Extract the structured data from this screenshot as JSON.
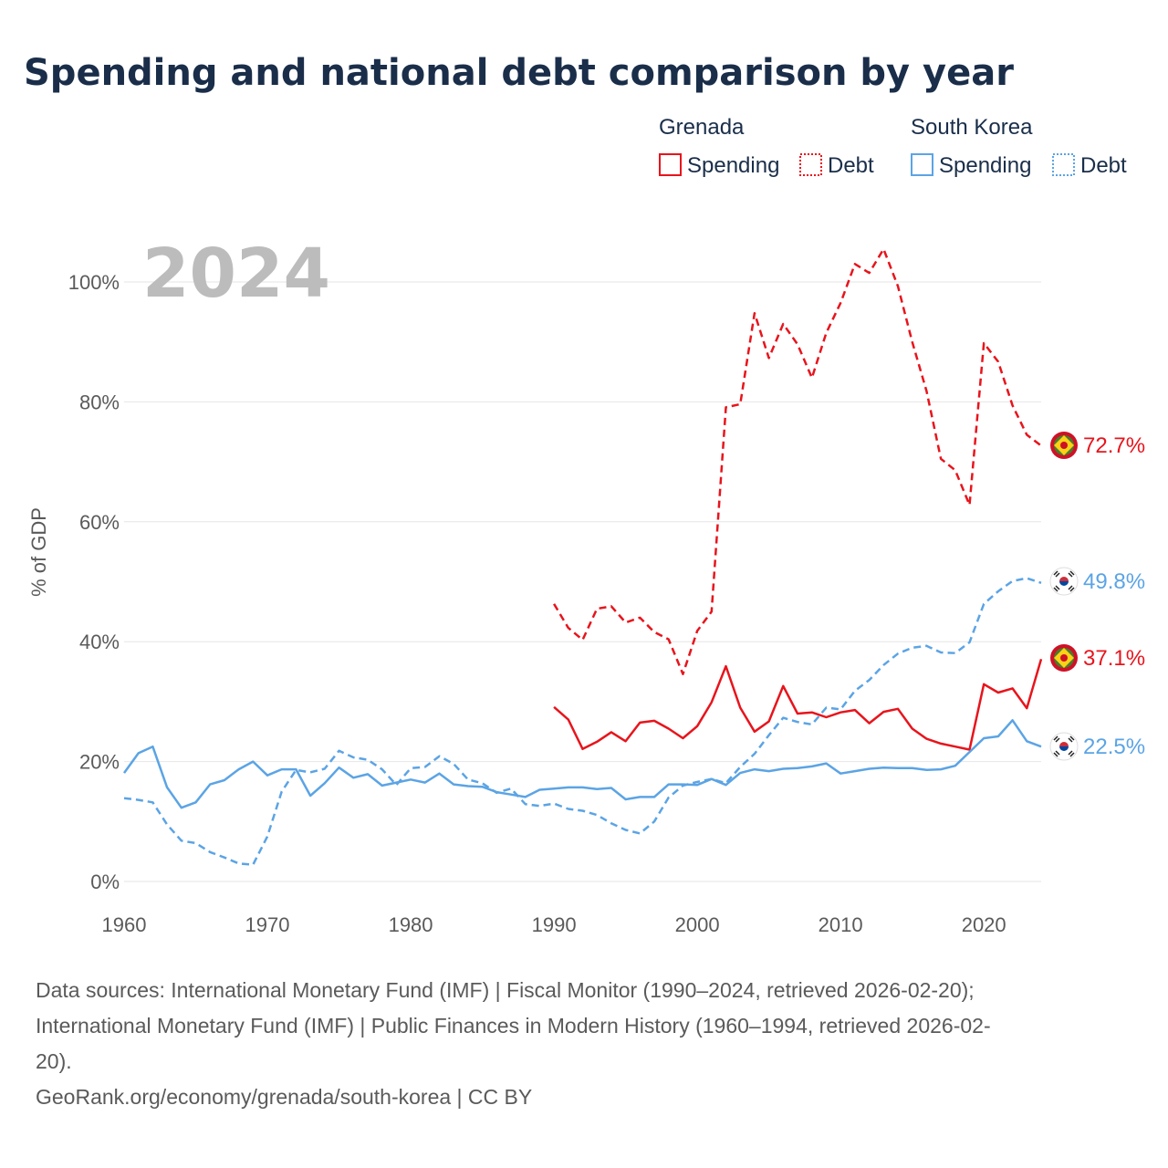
{
  "title": "Spending and national debt comparison by year",
  "year_watermark": "2024",
  "legend": {
    "groups": [
      {
        "country": "Grenada",
        "color": "#e8141c",
        "items": [
          {
            "label": "Spending",
            "style": "solid"
          },
          {
            "label": "Debt",
            "style": "dotted"
          }
        ]
      },
      {
        "country": "South Korea",
        "color": "#5ba4e5",
        "items": [
          {
            "label": "Spending",
            "style": "solid"
          },
          {
            "label": "Debt",
            "style": "dotted"
          }
        ]
      }
    ]
  },
  "end_labels": {
    "grenada_debt": "72.7%",
    "korea_debt": "49.8%",
    "grenada_spending": "37.1%",
    "korea_spending": "22.5%"
  },
  "footer": {
    "source_line1": "Data sources: International Monetary Fund (IMF) | Fiscal Monitor (1990–2024, retrieved 2026-02-20);",
    "source_line2": "International Monetary Fund (IMF) | Public Finances in Modern History (1960–1994, retrieved 2026-02-",
    "source_line3": "20).",
    "credit": "GeoRank.org/economy/grenada/south-korea | CC BY"
  },
  "chart_data": {
    "type": "line",
    "title": "Spending and national debt comparison by year",
    "xlabel": "",
    "ylabel": "% of GDP",
    "xlim": [
      1960,
      2024
    ],
    "ylim": [
      0,
      110
    ],
    "x_ticks": [
      1960,
      1970,
      1980,
      1990,
      2000,
      2010,
      2020
    ],
    "y_ticks": [
      0,
      20,
      40,
      60,
      80,
      100
    ],
    "y_tick_labels": [
      "0%",
      "20%",
      "40%",
      "60%",
      "80%",
      "100%"
    ],
    "grid": true,
    "legend_position": "top-right",
    "series": [
      {
        "name": "Grenada Debt",
        "country": "Grenada",
        "metric": "Debt",
        "color": "#e8141c",
        "dash": "dashed",
        "start_year": 1990,
        "values": [
          46.3,
          42.3,
          40.3,
          45.5,
          45.9,
          43.2,
          44.0,
          41.6,
          40.4,
          34.6,
          41.8,
          45.0,
          79.1,
          79.6,
          94.8,
          87.3,
          93.0,
          89.6,
          84.0,
          91.5,
          96.5,
          103.0,
          101.5,
          105.5,
          99.3,
          90.0,
          81.8,
          70.5,
          68.6,
          62.8,
          89.8,
          86.7,
          79.4,
          74.5,
          72.7
        ]
      },
      {
        "name": "Grenada Spending",
        "country": "Grenada",
        "metric": "Spending",
        "color": "#e8141c",
        "dash": "solid",
        "start_year": 1990,
        "values": [
          29.1,
          27.0,
          22.1,
          23.3,
          24.9,
          23.4,
          26.5,
          26.8,
          25.5,
          23.9,
          25.9,
          29.9,
          35.9,
          29.0,
          25.0,
          26.7,
          32.6,
          28.0,
          28.2,
          27.4,
          28.2,
          28.6,
          26.4,
          28.3,
          28.8,
          25.5,
          23.8,
          23.0,
          22.5,
          22.0,
          32.9,
          31.5,
          32.2,
          28.9,
          37.1
        ]
      },
      {
        "name": "South Korea Debt",
        "country": "South Korea",
        "metric": "Debt",
        "color": "#5ba4e5",
        "dash": "dashed",
        "start_year": 1960,
        "values": [
          13.9,
          13.6,
          13.2,
          9.5,
          6.8,
          6.4,
          4.9,
          4.0,
          3.0,
          2.8,
          7.5,
          15.0,
          18.6,
          18.2,
          18.8,
          21.8,
          20.7,
          20.3,
          18.7,
          16.1,
          18.9,
          19.1,
          20.9,
          19.6,
          17.0,
          16.4,
          14.8,
          15.5,
          12.9,
          12.6,
          13.0,
          12.1,
          11.8,
          11.1,
          9.7,
          8.6,
          8.0,
          10.0,
          14.0,
          16.0,
          16.6,
          17.1,
          16.4,
          19.1,
          21.3,
          24.4,
          27.3,
          26.6,
          26.2,
          29.0,
          28.7,
          31.8,
          33.6,
          36.1,
          38.0,
          39.0,
          39.3,
          38.2,
          38.1,
          39.9,
          46.3,
          48.4,
          50.1,
          50.6,
          49.8
        ]
      },
      {
        "name": "South Korea Spending",
        "country": "South Korea",
        "metric": "Spending",
        "color": "#5ba4e5",
        "dash": "solid",
        "start_year": 1960,
        "values": [
          18.1,
          21.4,
          22.5,
          15.7,
          12.3,
          13.2,
          16.2,
          16.9,
          18.7,
          20.0,
          17.7,
          18.7,
          18.7,
          14.3,
          16.4,
          19.0,
          17.3,
          17.9,
          16.0,
          16.5,
          17.0,
          16.5,
          18.0,
          16.2,
          15.9,
          15.8,
          14.9,
          14.5,
          14.1,
          15.3,
          15.5,
          15.7,
          15.7,
          15.4,
          15.6,
          13.7,
          14.1,
          14.1,
          16.2,
          16.2,
          16.1,
          17.1,
          16.1,
          18.1,
          18.7,
          18.4,
          18.8,
          18.9,
          19.2,
          19.7,
          18.0,
          18.4,
          18.8,
          19.0,
          18.9,
          18.9,
          18.6,
          18.7,
          19.3,
          21.6,
          23.9,
          24.2,
          26.9,
          23.4,
          22.5
        ]
      }
    ]
  }
}
